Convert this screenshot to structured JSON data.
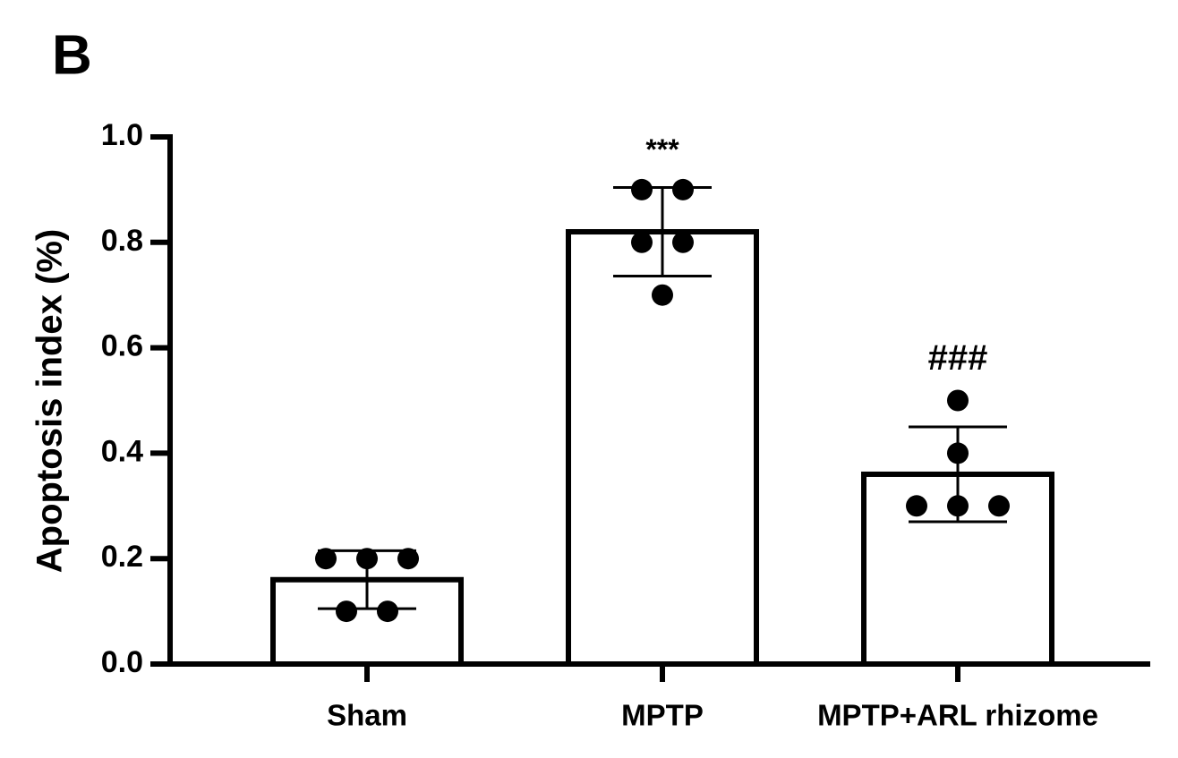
{
  "chart_data": {
    "type": "bar",
    "panel_label": "B",
    "ylabel": "Apoptosis index (%)",
    "categories": [
      "Sham",
      "MPTP",
      "MPTP+ARL rhizome"
    ],
    "values": [
      0.16,
      0.82,
      0.36
    ],
    "errors": [
      0.055,
      0.084,
      0.09
    ],
    "points": [
      [
        0.2,
        0.2,
        0.2,
        0.1,
        0.1
      ],
      [
        0.9,
        0.9,
        0.8,
        0.8,
        0.7
      ],
      [
        0.5,
        0.4,
        0.3,
        0.3,
        0.3
      ]
    ],
    "significance": [
      null,
      "***",
      "###"
    ],
    "color": "#ffffff",
    "edgecolor": "#000000",
    "point_color": "#000000",
    "ylim": [
      0,
      1
    ],
    "yticks": [
      {
        "value": 0,
        "label": "0.0"
      },
      0.2,
      0.4,
      0.6,
      0.8,
      {
        "value": 1,
        "label": "1.0"
      }
    ]
  }
}
